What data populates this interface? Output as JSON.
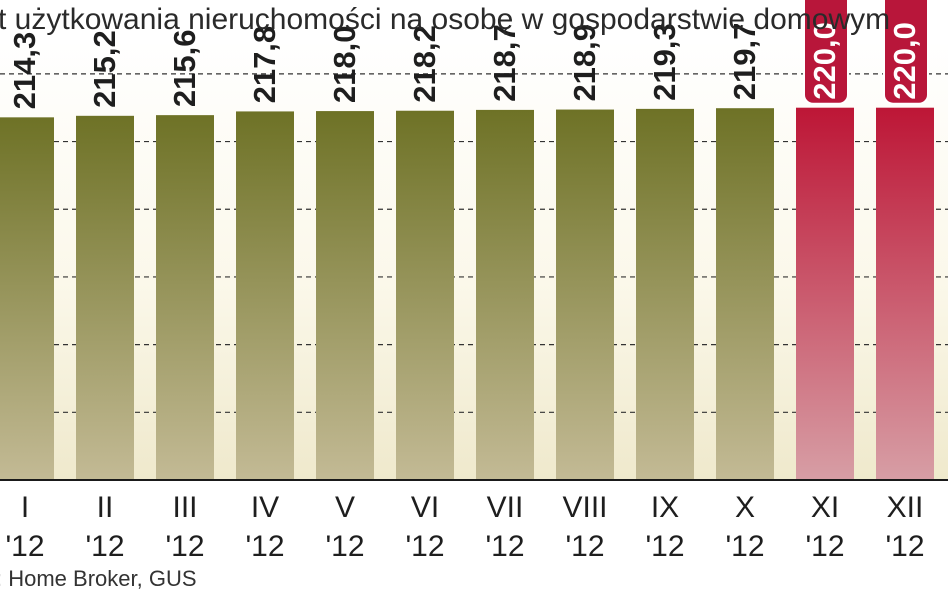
{
  "chart_data": {
    "type": "bar",
    "title": "t użytkowania nieruchomości na osobę w gospodarstwie domowym",
    "categories": [
      {
        "month": "I",
        "year": "'12"
      },
      {
        "month": "II",
        "year": "'12"
      },
      {
        "month": "III",
        "year": "'12"
      },
      {
        "month": "IV",
        "year": "'12"
      },
      {
        "month": "V",
        "year": "'12"
      },
      {
        "month": "VI",
        "year": "'12"
      },
      {
        "month": "VII",
        "year": "'12"
      },
      {
        "month": "VIII",
        "year": "'12"
      },
      {
        "month": "IX",
        "year": "'12"
      },
      {
        "month": "X",
        "year": "'12"
      },
      {
        "month": "XI",
        "year": "'12"
      },
      {
        "month": "XII",
        "year": "'12"
      }
    ],
    "values": [
      214.3,
      215.2,
      215.6,
      217.8,
      218.0,
      218.2,
      218.7,
      218.9,
      219.3,
      219.7,
      220.0,
      220.0
    ],
    "value_labels": [
      "214,3",
      "215,2",
      "215,6",
      "217,8",
      "218,0",
      "218,2",
      "218,7",
      "218,9",
      "219,3",
      "219,7",
      "220,0",
      "220,0"
    ],
    "highlighted": [
      false,
      false,
      false,
      false,
      false,
      false,
      false,
      false,
      false,
      false,
      true,
      true
    ],
    "ylim": [
      0,
      260
    ],
    "grid": true,
    "colors": {
      "bar_top": "#6e7226",
      "bar_bottom": "#c3ba95",
      "highlight_top": "#bd1636",
      "highlight_bottom": "#d79ea5",
      "label_box": "#b8163a",
      "grid": "#333333"
    },
    "source": ": Home Broker, GUS"
  }
}
